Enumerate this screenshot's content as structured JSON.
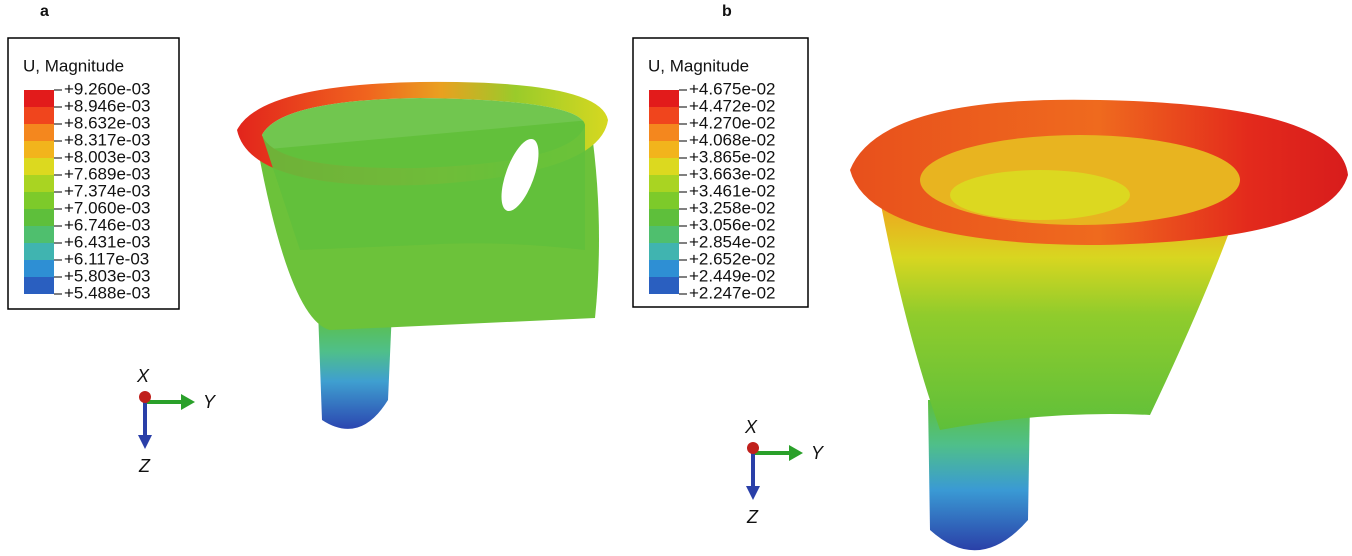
{
  "panels": [
    {
      "label": "a",
      "legend_title": "U, Magnitude",
      "legend_labels": [
        "+9.260e-03",
        "+8.946e-03",
        "+8.632e-03",
        "+8.317e-03",
        "+8.003e-03",
        "+7.689e-03",
        "+7.374e-03",
        "+7.060e-03",
        "+6.746e-03",
        "+6.431e-03",
        "+6.117e-03",
        "+5.803e-03",
        "+5.488e-03"
      ],
      "axes": {
        "x": "X",
        "y": "Y",
        "z": "Z"
      }
    },
    {
      "label": "b",
      "legend_title": "U, Magnitude",
      "legend_labels": [
        "+4.675e-02",
        "+4.472e-02",
        "+4.270e-02",
        "+4.068e-02",
        "+3.865e-02",
        "+3.663e-02",
        "+3.461e-02",
        "+3.258e-02",
        "+3.056e-02",
        "+2.854e-02",
        "+2.652e-02",
        "+2.449e-02",
        "+2.247e-02"
      ],
      "axes": {
        "x": "X",
        "y": "Y",
        "z": "Z"
      }
    }
  ]
}
